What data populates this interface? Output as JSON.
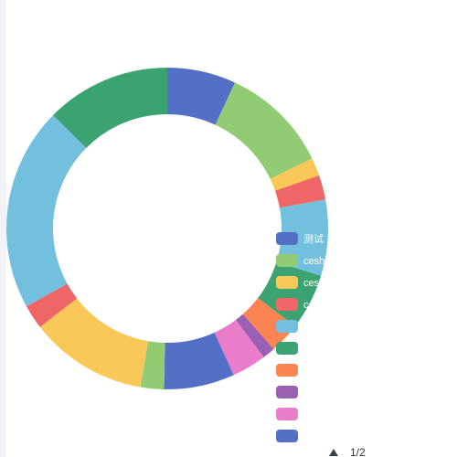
{
  "chart_data": {
    "type": "pie",
    "donut": true,
    "series": [
      {
        "name": "测试",
        "value": 7.6,
        "color": "#5470c6"
      },
      {
        "name": "ceshi",
        "value": 12.0,
        "color": "#91cc75"
      },
      {
        "name": "ceshi",
        "value": 2.0,
        "color": "#fac858"
      },
      {
        "name": "ceshi",
        "value": 2.7,
        "color": "#ee6666"
      },
      {
        "name": "",
        "value": 8.4,
        "color": "#73c0de"
      },
      {
        "name": "",
        "value": 6.2,
        "color": "#3ba272"
      },
      {
        "name": "",
        "value": 3.4,
        "color": "#fc8452"
      },
      {
        "name": "",
        "value": 1.4,
        "color": "#9a60b4"
      },
      {
        "name": "",
        "value": 3.8,
        "color": "#ea7ccc"
      },
      {
        "name": "",
        "value": 7.8,
        "color": "#5470c6"
      },
      {
        "name": "",
        "value": 2.6,
        "color": "#91cc75"
      },
      {
        "name": "",
        "value": 13.0,
        "color": "#fac858"
      },
      {
        "name": "",
        "value": 2.7,
        "color": "#ee6666"
      },
      {
        "name": "",
        "value": 22.5,
        "color": "#73c0de"
      },
      {
        "name": "",
        "value": 13.8,
        "color": "#3ba272"
      }
    ],
    "legend": {
      "placement": "right",
      "visible_entries": 10,
      "page_label": "1/2"
    }
  }
}
